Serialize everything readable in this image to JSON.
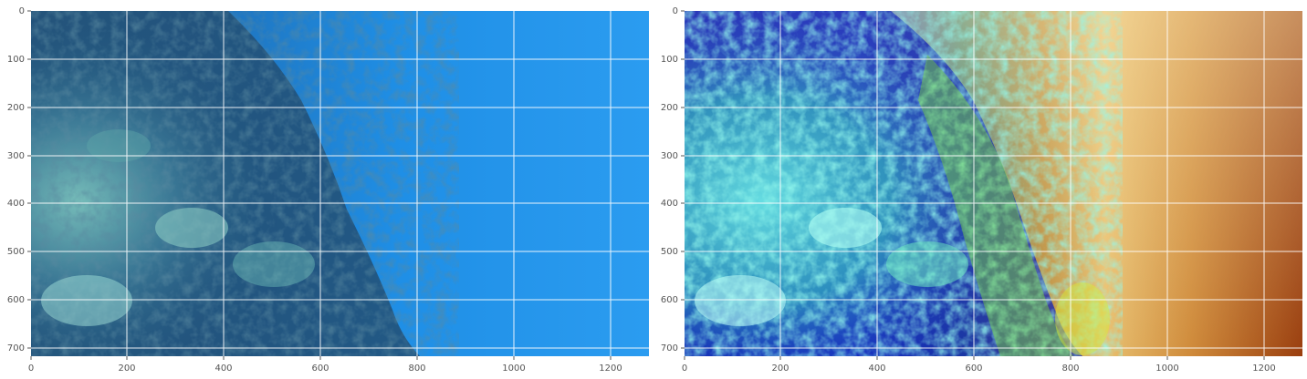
{
  "figure": {
    "panels": [
      {
        "id": "left",
        "x_ticks": [
          "0",
          "200",
          "400",
          "600",
          "800",
          "1000",
          "1200"
        ],
        "y_ticks": [
          "0",
          "100",
          "200",
          "300",
          "400",
          "500",
          "600",
          "700"
        ],
        "image_semantic": "underwater coral reef photo (original colors)",
        "colors": {
          "water": "#1f8fe6",
          "reef_dark": "#143a5a",
          "reef_light": "#7fd0c8"
        }
      },
      {
        "id": "right",
        "x_ticks": [
          "0",
          "200",
          "400",
          "600",
          "800",
          "1000",
          "1200"
        ],
        "y_ticks": [
          "0",
          "100",
          "200",
          "300",
          "400",
          "500",
          "600",
          "700"
        ],
        "image_semantic": "underwater coral reef photo (color-corrected / enhanced)",
        "colors": {
          "reef_blue": "#0a12a8",
          "reef_cyan": "#43e6e0",
          "reef_green": "#7ddc3a",
          "water_warm": "#e8b85a",
          "water_red": "#a64a12"
        }
      }
    ],
    "grid": "on",
    "grid_color": "#ffffff",
    "axis_color": "#555555"
  }
}
